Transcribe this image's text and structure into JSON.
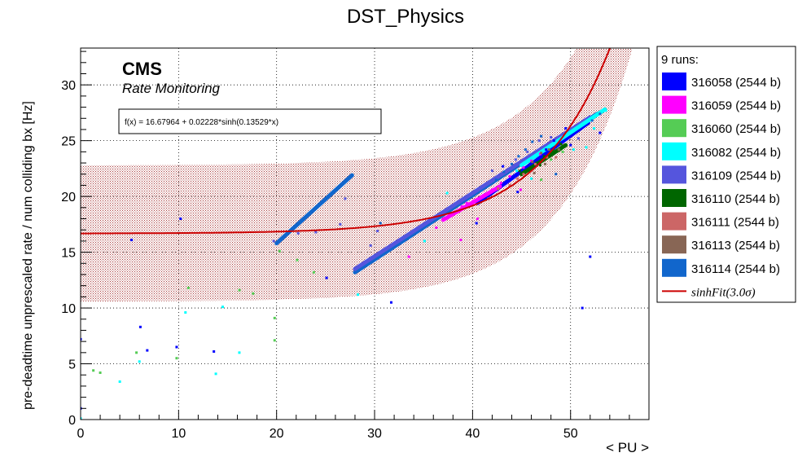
{
  "chart_data": {
    "type": "scatter",
    "title": "DST_Physics",
    "xlabel": "< PU >",
    "ylabel": "pre-deadtime unprescaled rate / num colliding bx [Hz]",
    "xlim": [
      0,
      58
    ],
    "ylim": [
      0,
      33.3
    ],
    "x_ticks": [
      0,
      10,
      20,
      30,
      40,
      50
    ],
    "y_ticks": [
      0,
      5,
      10,
      15,
      20,
      25,
      30
    ],
    "grid": true,
    "cms_label": "CMS",
    "cms_sublabel": "Rate Monitoring",
    "fit_formula": "f(x) = 16.67964 + 0.02228*sinh(0.13529*x)",
    "fit": {
      "a": 16.67964,
      "b": 0.02228,
      "c": 0.13529,
      "color": "#cc0000"
    },
    "band": {
      "sigma": 3.0,
      "halfwidth": 6.1,
      "color": "#b03030"
    },
    "legend_position": "right",
    "legend": {
      "header": "9 runs:",
      "fit_label": "sinhFit(3.0σ)"
    },
    "series": [
      {
        "name": "316058 (2544 b)",
        "color": "#0000ff",
        "points": [
          [
            0,
            7.2
          ],
          [
            0,
            1.0
          ],
          [
            5.2,
            16.1
          ],
          [
            6.1,
            8.3
          ],
          [
            6.8,
            6.2
          ],
          [
            9.8,
            6.5
          ],
          [
            10.2,
            18.0
          ],
          [
            13.6,
            6.1
          ],
          [
            25.1,
            12.7
          ],
          [
            31.7,
            10.5
          ],
          [
            43.1,
            22.7
          ],
          [
            47.5,
            24.2
          ],
          [
            48.3,
            25.0
          ],
          [
            50.0,
            24.6
          ],
          [
            51.2,
            10.0
          ],
          [
            52.0,
            14.6
          ],
          [
            53.0,
            25.7
          ],
          [
            49.5,
            26.1
          ],
          [
            44.6,
            20.4
          ],
          [
            40.4,
            17.6
          ]
        ]
      },
      {
        "name": "316059 (2544 b)",
        "color": "#ff00ff",
        "points": [
          [
            38.1,
            18.6
          ],
          [
            38.9,
            19.1
          ],
          [
            39.4,
            19.4
          ],
          [
            40.1,
            19.6
          ],
          [
            41.1,
            20.1
          ],
          [
            42.0,
            20.6
          ],
          [
            42.9,
            21.2
          ],
          [
            43.8,
            21.8
          ],
          [
            38.8,
            16.1
          ],
          [
            33.5,
            14.6
          ],
          [
            36.3,
            17.2
          ],
          [
            45.2,
            22.6
          ],
          [
            46.0,
            23.2
          ],
          [
            46.9,
            23.8
          ],
          [
            44.9,
            20.6
          ],
          [
            40.5,
            18.0
          ]
        ]
      },
      {
        "name": "316060 (2544 b)",
        "color": "#55cc55",
        "points": [
          [
            1.3,
            4.4
          ],
          [
            2.0,
            4.2
          ],
          [
            5.7,
            6.0
          ],
          [
            9.8,
            5.5
          ],
          [
            11.0,
            11.8
          ],
          [
            16.2,
            11.6
          ],
          [
            17.6,
            11.3
          ],
          [
            19.8,
            7.1
          ],
          [
            19.8,
            9.1
          ],
          [
            20.3,
            15.1
          ],
          [
            23.8,
            13.2
          ],
          [
            22.1,
            14.3
          ],
          [
            48.0,
            23.3
          ],
          [
            49.2,
            24.0
          ],
          [
            47.0,
            21.5
          ]
        ]
      },
      {
        "name": "316082 (2544 b)",
        "color": "#00ffff",
        "points": [
          [
            0,
            0.1
          ],
          [
            4.0,
            3.4
          ],
          [
            6.0,
            5.2
          ],
          [
            10.7,
            9.6
          ],
          [
            13.8,
            4.1
          ],
          [
            14.5,
            10.1
          ],
          [
            16.2,
            6.0
          ],
          [
            28.3,
            11.2
          ],
          [
            37.4,
            20.3
          ],
          [
            44.5,
            22.3
          ],
          [
            46.0,
            21.6
          ],
          [
            50.3,
            24.2
          ],
          [
            51.6,
            24.4
          ],
          [
            52.4,
            26.1
          ],
          [
            53.6,
            27.7
          ],
          [
            35.1,
            16.0
          ]
        ]
      },
      {
        "name": "316109 (2544 b)",
        "color": "#5555dd",
        "points": [
          [
            19.7,
            16.0
          ],
          [
            22.2,
            16.7
          ],
          [
            24.0,
            16.8
          ],
          [
            26.5,
            17.5
          ],
          [
            42.0,
            22.3
          ],
          [
            44.4,
            23.3
          ],
          [
            45.6,
            24.0
          ],
          [
            46.8,
            25.0
          ],
          [
            48.0,
            25.3
          ],
          [
            49.2,
            25.6
          ],
          [
            50.8,
            25.2
          ],
          [
            30.3,
            16.9
          ],
          [
            29.6,
            15.6
          ],
          [
            27.0,
            19.8
          ]
        ]
      },
      {
        "name": "316110 (2544 b)",
        "color": "#006600",
        "points": [
          [
            45.7,
            22.3
          ],
          [
            46.5,
            23.0
          ],
          [
            47.3,
            23.6
          ],
          [
            48.2,
            24.1
          ],
          [
            49.0,
            24.7
          ],
          [
            48.3,
            24.0
          ],
          [
            46.9,
            22.8
          ],
          [
            47.9,
            23.9
          ],
          [
            48.8,
            24.2
          ],
          [
            44.8,
            22.3
          ]
        ]
      },
      {
        "name": "316111 (2544 b)",
        "color": "#cc6666",
        "points": [
          [
            45.2,
            22.0
          ],
          [
            46.4,
            22.9
          ],
          [
            47.6,
            23.5
          ],
          [
            48.5,
            23.5
          ],
          [
            44.6,
            21.6
          ],
          [
            43.8,
            21.0
          ],
          [
            42.6,
            20.7
          ],
          [
            41.6,
            19.8
          ]
        ]
      },
      {
        "name": "316113 (2544 b)",
        "color": "#886655",
        "points": [
          [
            46.1,
            23.1
          ],
          [
            47.0,
            23.9
          ],
          [
            47.8,
            24.2
          ],
          [
            48.8,
            24.2
          ],
          [
            47.4,
            22.9
          ],
          [
            46.3,
            22.1
          ]
        ]
      },
      {
        "name": "316114 (2544 b)",
        "color": "#1166cc",
        "points": [
          [
            42.4,
            21.5
          ],
          [
            43.2,
            22.2
          ],
          [
            44.0,
            22.9
          ],
          [
            44.7,
            23.6
          ],
          [
            45.4,
            24.2
          ],
          [
            46.1,
            24.9
          ],
          [
            47.0,
            25.4
          ],
          [
            52.2,
            26.8
          ],
          [
            53.0,
            27.4
          ],
          [
            30.6,
            17.6
          ],
          [
            48.5,
            22.0
          ]
        ]
      }
    ],
    "bands": [
      {
        "series": 8,
        "from": [
          20.0,
          15.8
        ],
        "to": [
          27.7,
          21.9
        ]
      },
      {
        "series": 8,
        "from": [
          28.0,
          13.2
        ],
        "to": [
          52.7,
          27.4
        ]
      },
      {
        "series": 4,
        "from": [
          28.0,
          13.5
        ],
        "to": [
          52.0,
          27.1
        ]
      },
      {
        "series": 0,
        "from": [
          40.5,
          19.4
        ],
        "to": [
          51.8,
          26.6
        ]
      },
      {
        "series": 1,
        "from": [
          37.0,
          17.9
        ],
        "to": [
          42.8,
          20.9
        ]
      },
      {
        "series": 5,
        "from": [
          45.0,
          22.0
        ],
        "to": [
          49.5,
          24.6
        ]
      },
      {
        "series": 3,
        "from": [
          45.0,
          22.8
        ],
        "to": [
          53.5,
          27.8
        ]
      }
    ]
  }
}
